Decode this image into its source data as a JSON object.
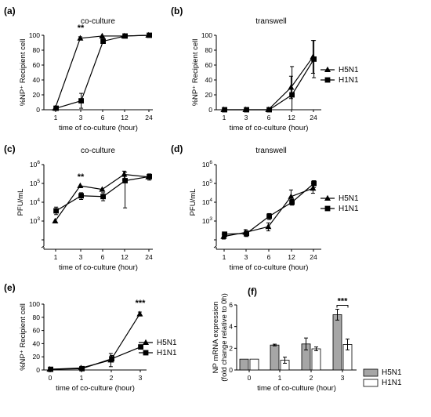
{
  "figure": {
    "series_names": [
      "H5N1",
      "H1N1"
    ],
    "colors": {
      "h5n1_bar": "#a6a6a6",
      "h1n1_bar": "#ffffff",
      "line": "#000000"
    }
  },
  "chart_data": [
    {
      "id": "a",
      "panel_label": "(a)",
      "type": "line",
      "title": "co-culture",
      "xlabel": "time of co-culture (hour)",
      "ylabel": "%NP⁺ Recipient cell",
      "categories": [
        "1",
        "3",
        "6",
        "12",
        "24"
      ],
      "ylim": [
        0,
        100
      ],
      "yticks": [
        "0",
        "20",
        "40",
        "60",
        "80",
        "100"
      ],
      "annotations": [
        {
          "text": "**",
          "category": "3"
        }
      ],
      "series": [
        {
          "name": "H5N1",
          "marker": "triangle",
          "values": [
            2,
            96,
            99,
            99,
            100
          ],
          "errors": [
            0,
            2,
            0,
            0,
            0
          ]
        },
        {
          "name": "H1N1",
          "marker": "square",
          "values": [
            2,
            12,
            92,
            99,
            100
          ],
          "errors": [
            1,
            10,
            3,
            0,
            0
          ]
        }
      ]
    },
    {
      "id": "b",
      "panel_label": "(b)",
      "type": "line",
      "title": "transwell",
      "xlabel": "time of co-culture (hour)",
      "ylabel": "%NP⁺ Recipient cell",
      "categories": [
        "1",
        "3",
        "6",
        "12",
        "24"
      ],
      "ylim": [
        0,
        100
      ],
      "yticks": [
        "0",
        "20",
        "40",
        "60",
        "80",
        "100"
      ],
      "legend": "right",
      "series": [
        {
          "name": "H5N1",
          "marker": "triangle",
          "values": [
            0,
            0,
            0,
            30,
            71
          ],
          "errors": [
            0,
            0,
            0,
            15,
            22
          ]
        },
        {
          "name": "H1N1",
          "marker": "square",
          "values": [
            0,
            0,
            0,
            20,
            68
          ],
          "errors": [
            0,
            0,
            0,
            38,
            25
          ]
        }
      ]
    },
    {
      "id": "c",
      "panel_label": "(c)",
      "type": "line",
      "title": "co-culture",
      "xlabel": "time of co-culture (hour)",
      "ylabel": "PFU/mL",
      "log": true,
      "categories": [
        "1",
        "3",
        "6",
        "12",
        "24"
      ],
      "ylim": [
        100,
        1000000
      ],
      "annotations": [
        {
          "text": "**",
          "category": "3"
        }
      ],
      "series": [
        {
          "name": "H5N1",
          "marker": "triangle",
          "values": [
            1000,
            75000,
            48000,
            300000,
            220000
          ],
          "errors_low": [
            0,
            0,
            0,
            150000,
            0
          ],
          "errors_high": [
            0,
            0,
            0,
            450000,
            0
          ]
        },
        {
          "name": "H1N1",
          "marker": "square",
          "values": [
            3500,
            22000,
            20000,
            140000,
            230000
          ],
          "errors_low": [
            2200,
            14000,
            12000,
            5000,
            150000
          ],
          "errors_high": [
            5500,
            32000,
            32000,
            400000,
            320000
          ]
        }
      ]
    },
    {
      "id": "d",
      "panel_label": "(d)",
      "type": "line",
      "title": "transwell",
      "xlabel": "time of co-culture (hour)",
      "ylabel": "PFU/mL",
      "log": true,
      "categories": [
        "1",
        "3",
        "6",
        "12",
        "24"
      ],
      "ylim": [
        100,
        1000000
      ],
      "legend": "right",
      "series": [
        {
          "name": "H5N1",
          "marker": "triangle",
          "values": [
            150,
            250,
            500,
            20000,
            55000
          ],
          "errors_low": [
            110,
            160,
            300,
            8000,
            30000
          ],
          "errors_high": [
            200,
            350,
            800,
            45000,
            100000
          ]
        },
        {
          "name": "H1N1",
          "marker": "square",
          "values": [
            200,
            220,
            1800,
            10000,
            100000
          ],
          "errors_low": [
            140,
            150,
            1200,
            7000,
            60000
          ],
          "errors_high": [
            260,
            300,
            2500,
            14000,
            140000
          ]
        }
      ]
    },
    {
      "id": "e",
      "panel_label": "(e)",
      "type": "line",
      "title": "",
      "xlabel": "time of co-culture (hour)",
      "ylabel": "%NP⁺ Recipient cell",
      "categories": [
        "0",
        "1",
        "2",
        "3"
      ],
      "ylim": [
        0,
        100
      ],
      "yticks": [
        "0",
        "20",
        "40",
        "60",
        "80",
        "100"
      ],
      "legend": "right",
      "annotations": [
        {
          "text": "***",
          "category": "3"
        }
      ],
      "series": [
        {
          "name": "H5N1",
          "marker": "triangle",
          "values": [
            1,
            3,
            15,
            85
          ],
          "errors": [
            0,
            1,
            10,
            3
          ]
        },
        {
          "name": "H1N1",
          "marker": "square",
          "values": [
            1,
            2,
            17,
            35
          ],
          "errors": [
            0,
            1,
            5,
            1
          ]
        }
      ]
    },
    {
      "id": "f",
      "panel_label": "(f)",
      "type": "bar",
      "title": "",
      "xlabel": "time of co-culture (hour)",
      "ylabel": "NP mRNA expression",
      "ylabel2": "(fold change relative to 0h)",
      "categories": [
        "0",
        "1",
        "2",
        "3"
      ],
      "ylim": [
        0,
        6
      ],
      "yticks": [
        "0",
        "2",
        "4",
        "6"
      ],
      "legend": "right",
      "annotations": [
        {
          "text": "***",
          "category": "3"
        }
      ],
      "series": [
        {
          "name": "H5N1",
          "values": [
            1,
            2.3,
            2.4,
            5.1
          ],
          "errors": [
            0,
            0.08,
            0.55,
            0.5
          ]
        },
        {
          "name": "H1N1",
          "values": [
            1,
            0.9,
            1.95,
            2.35
          ],
          "errors": [
            0,
            0.28,
            0.17,
            0.5
          ]
        }
      ]
    }
  ]
}
